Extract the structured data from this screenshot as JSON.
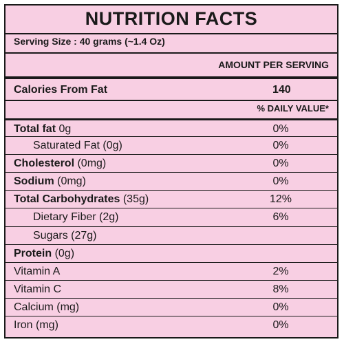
{
  "title": "NUTRITION FACTS",
  "serving_size": "Serving Size : 40 grams (~1.4 Oz)",
  "amount_per_serving": "AMOUNT PER SERVING",
  "calories": {
    "label": "Calories From Fat",
    "value": "140"
  },
  "daily_value_header": "% DAILY VALUE*",
  "nutrients": [
    {
      "name": "Total fat",
      "amount": " 0g",
      "dv": "0%",
      "bold": true,
      "indent": false
    },
    {
      "name": "",
      "amount": "Saturated Fat (0g)",
      "dv": "0%",
      "bold": false,
      "indent": true
    },
    {
      "name": "Cholesterol",
      "amount": " (0mg)",
      "dv": "0%",
      "bold": true,
      "indent": false
    },
    {
      "name": "Sodium",
      "amount": " (0mg)",
      "dv": "0%",
      "bold": true,
      "indent": false
    },
    {
      "name": "Total Carbohydrates",
      "amount": " (35g)",
      "dv": "12%",
      "bold": true,
      "indent": false
    },
    {
      "name": "",
      "amount": "Dietary Fiber (2g)",
      "dv": "6%",
      "bold": false,
      "indent": true
    },
    {
      "name": "",
      "amount": "Sugars (27g)",
      "dv": "",
      "bold": false,
      "indent": true
    },
    {
      "name": "Protein",
      "amount": " (0g)",
      "dv": "",
      "bold": true,
      "indent": false
    },
    {
      "name": "",
      "amount": "Vitamin A",
      "dv": "2%",
      "bold": false,
      "indent": false
    },
    {
      "name": "",
      "amount": "Vitamin C",
      "dv": "8%",
      "bold": false,
      "indent": false
    },
    {
      "name": "",
      "amount": "Calcium (mg)",
      "dv": "0%",
      "bold": false,
      "indent": false
    },
    {
      "name": "",
      "amount": "Iron (mg)",
      "dv": "0%",
      "bold": false,
      "indent": false
    }
  ],
  "colors": {
    "background": "#f8cfe3",
    "ink": "#1a1a1a"
  }
}
